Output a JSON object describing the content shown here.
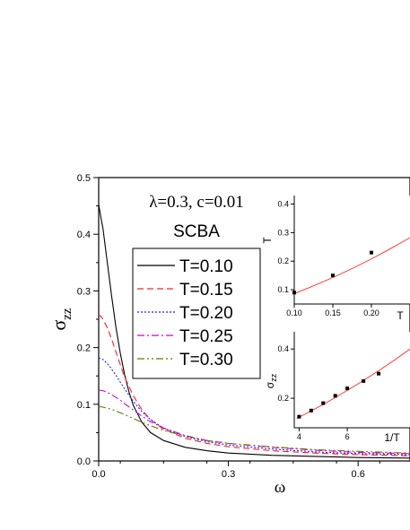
{
  "chart_data": [
    {
      "type": "line",
      "role": "main",
      "xlabel": "ω",
      "ylabel_symbol": "σ",
      "ylabel_sub": "zz",
      "xlim": [
        0.0,
        0.72
      ],
      "ylim": [
        0.0,
        0.5
      ],
      "xticks": [
        0.0,
        0.3,
        0.6
      ],
      "xtick_labels": [
        "0.0",
        "0.3",
        "0.6"
      ],
      "yticks": [
        0.0,
        0.1,
        0.2,
        0.3,
        0.4,
        0.5
      ],
      "ytick_labels": [
        "0.0",
        "0.1",
        "0.2",
        "0.3",
        "0.4",
        "0.5"
      ],
      "annotation_line1": "λ=0.3, c=0.01",
      "annotation_line2": "SCBA",
      "legend_placement": "upper-center",
      "series": [
        {
          "name": "T=0.10",
          "color": "#000000",
          "dash": "solid",
          "x": [
            0.0,
            0.005,
            0.01,
            0.02,
            0.03,
            0.04,
            0.05,
            0.06,
            0.07,
            0.08,
            0.1,
            0.12,
            0.15,
            0.2,
            0.25,
            0.3,
            0.4,
            0.5,
            0.6,
            0.72
          ],
          "y": [
            0.452,
            0.43,
            0.41,
            0.35,
            0.29,
            0.235,
            0.19,
            0.152,
            0.122,
            0.098,
            0.068,
            0.05,
            0.036,
            0.024,
            0.018,
            0.014,
            0.01,
            0.008,
            0.006,
            0.005
          ]
        },
        {
          "name": "T=0.15",
          "color": "#ff2020",
          "dash": "7,4",
          "x": [
            0.0,
            0.005,
            0.01,
            0.02,
            0.03,
            0.04,
            0.05,
            0.06,
            0.08,
            0.1,
            0.12,
            0.15,
            0.2,
            0.25,
            0.3,
            0.4,
            0.5,
            0.6,
            0.72
          ],
          "y": [
            0.258,
            0.255,
            0.25,
            0.235,
            0.215,
            0.192,
            0.17,
            0.148,
            0.115,
            0.09,
            0.073,
            0.056,
            0.04,
            0.031,
            0.025,
            0.018,
            0.014,
            0.011,
            0.009
          ]
        },
        {
          "name": "T=0.20",
          "color": "#2020ff",
          "dash": "2,2",
          "x": [
            0.0,
            0.01,
            0.02,
            0.03,
            0.04,
            0.05,
            0.06,
            0.08,
            0.1,
            0.12,
            0.15,
            0.2,
            0.25,
            0.3,
            0.4,
            0.5,
            0.6,
            0.72
          ],
          "y": [
            0.182,
            0.179,
            0.172,
            0.162,
            0.151,
            0.139,
            0.127,
            0.105,
            0.087,
            0.073,
            0.058,
            0.043,
            0.034,
            0.028,
            0.021,
            0.016,
            0.013,
            0.011
          ]
        },
        {
          "name": "T=0.25",
          "color": "#d000d0",
          "dash": "8,3,2,3",
          "x": [
            0.0,
            0.01,
            0.02,
            0.03,
            0.04,
            0.05,
            0.06,
            0.08,
            0.1,
            0.12,
            0.15,
            0.2,
            0.25,
            0.3,
            0.4,
            0.5,
            0.6,
            0.72
          ],
          "y": [
            0.125,
            0.124,
            0.121,
            0.117,
            0.112,
            0.107,
            0.101,
            0.09,
            0.079,
            0.069,
            0.058,
            0.045,
            0.036,
            0.031,
            0.024,
            0.019,
            0.015,
            0.013
          ]
        },
        {
          "name": "T=0.30",
          "color": "#707000",
          "dash": "8,3,2,3,2,3",
          "x": [
            0.0,
            0.01,
            0.02,
            0.03,
            0.04,
            0.05,
            0.06,
            0.08,
            0.1,
            0.12,
            0.15,
            0.2,
            0.25,
            0.3,
            0.4,
            0.5,
            0.6,
            0.72
          ],
          "y": [
            0.096,
            0.095,
            0.093,
            0.091,
            0.088,
            0.085,
            0.082,
            0.075,
            0.068,
            0.062,
            0.054,
            0.044,
            0.036,
            0.031,
            0.025,
            0.02,
            0.017,
            0.014
          ]
        }
      ]
    },
    {
      "type": "scatter",
      "role": "inset-top",
      "xlabel": "T",
      "ylabel": "T",
      "xlim": [
        0.1,
        0.25
      ],
      "ylim": [
        0.05,
        0.43
      ],
      "xticks": [
        0.1,
        0.15,
        0.2
      ],
      "xtick_labels": [
        "0.10",
        "0.15",
        "0.20"
      ],
      "yticks": [
        0.1,
        0.2,
        0.3,
        0.4
      ],
      "ytick_labels": [
        "0.1",
        "0.2",
        "0.3",
        "0.4"
      ],
      "points": {
        "x": [
          0.1,
          0.15,
          0.2
        ],
        "y": [
          0.09,
          0.15,
          0.23
        ]
      },
      "fit": {
        "color": "#ff4040",
        "x": [
          0.1,
          0.12,
          0.14,
          0.16,
          0.18,
          0.2,
          0.22,
          0.24,
          0.25
        ],
        "y": [
          0.086,
          0.108,
          0.131,
          0.155,
          0.181,
          0.208,
          0.237,
          0.267,
          0.282
        ]
      }
    },
    {
      "type": "scatter",
      "role": "inset-bottom",
      "xlabel": "1/T",
      "ylabel_symbol": "σ",
      "ylabel_sub": "zz",
      "xlim": [
        3.8,
        8.6
      ],
      "ylim": [
        0.08,
        0.47
      ],
      "xticks": [
        4,
        6
      ],
      "xtick_labels": [
        "4",
        "6"
      ],
      "yticks": [
        0.2,
        0.4
      ],
      "ytick_labels": [
        "0.2",
        "0.4"
      ],
      "points": {
        "x": [
          4.0,
          4.5,
          5.0,
          5.5,
          6.0,
          6.67,
          7.3
        ],
        "y": [
          0.125,
          0.15,
          0.18,
          0.21,
          0.24,
          0.27,
          0.3
        ]
      },
      "fit": {
        "color": "#ff4040",
        "x": [
          3.9,
          4.5,
          5.0,
          5.5,
          6.0,
          6.5,
          7.0,
          7.5,
          8.0,
          8.6
        ],
        "y": [
          0.118,
          0.148,
          0.175,
          0.203,
          0.232,
          0.262,
          0.293,
          0.325,
          0.358,
          0.4
        ]
      }
    }
  ]
}
